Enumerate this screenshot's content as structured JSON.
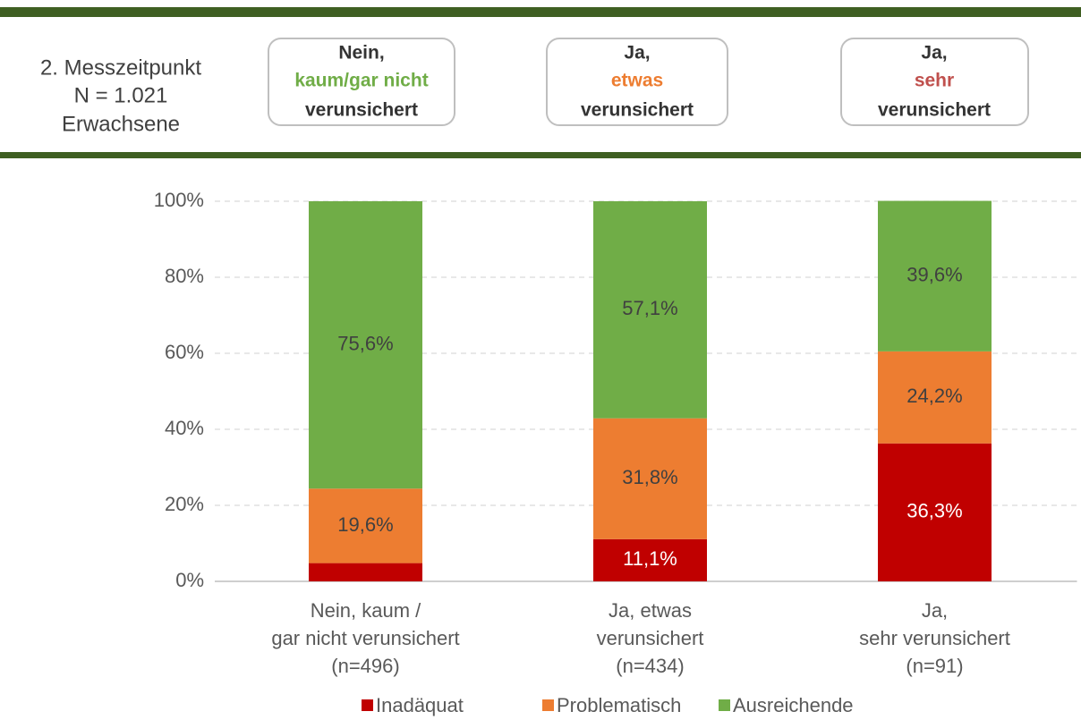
{
  "header": {
    "left": [
      "2. Messzeitpunkt",
      "N = 1.021",
      "Erwachsene"
    ],
    "boxes": [
      [
        "Nein,",
        "kaum/gar nicht",
        "verunsichert"
      ],
      [
        "Ja,",
        "etwas",
        "verunsichert"
      ],
      [
        "Ja,",
        "sehr",
        "verunsichert"
      ]
    ]
  },
  "chart_data": {
    "type": "stacked_bar",
    "categories": [
      [
        "Nein, kaum /",
        "gar nicht verunsichert",
        "(n=496)"
      ],
      [
        "Ja, etwas",
        "verunsichert",
        "(n=434)"
      ],
      [
        "Ja,",
        "sehr verunsichert",
        "(n=91)"
      ]
    ],
    "series": [
      {
        "name": "Inadäquat",
        "color": "#c00000",
        "label_color": "#ffffff",
        "values": [
          4.8,
          11.1,
          36.3
        ],
        "value_labels": [
          null,
          "11,1%",
          "36,3%"
        ]
      },
      {
        "name": "Problematisch",
        "color": "#ed7d31",
        "label_color": "#404040",
        "values": [
          19.6,
          31.8,
          24.2
        ],
        "value_labels": [
          "19,6%",
          "31,8%",
          "24,2%"
        ]
      },
      {
        "name": "Ausreichende",
        "color": "#70ad47",
        "label_color": "#404040",
        "values": [
          75.6,
          57.1,
          39.6
        ],
        "value_labels": [
          "75,6%",
          "57,1%",
          "39,6%"
        ]
      }
    ],
    "ylim": [
      0,
      100
    ],
    "yticks": [
      {
        "value": 0,
        "label": "0%"
      },
      {
        "value": 20,
        "label": "20%"
      },
      {
        "value": 40,
        "label": "40%"
      },
      {
        "value": 60,
        "label": "60%"
      },
      {
        "value": 80,
        "label": "80%"
      },
      {
        "value": 100,
        "label": "100%"
      }
    ],
    "grid": true,
    "legend": "bottom"
  }
}
